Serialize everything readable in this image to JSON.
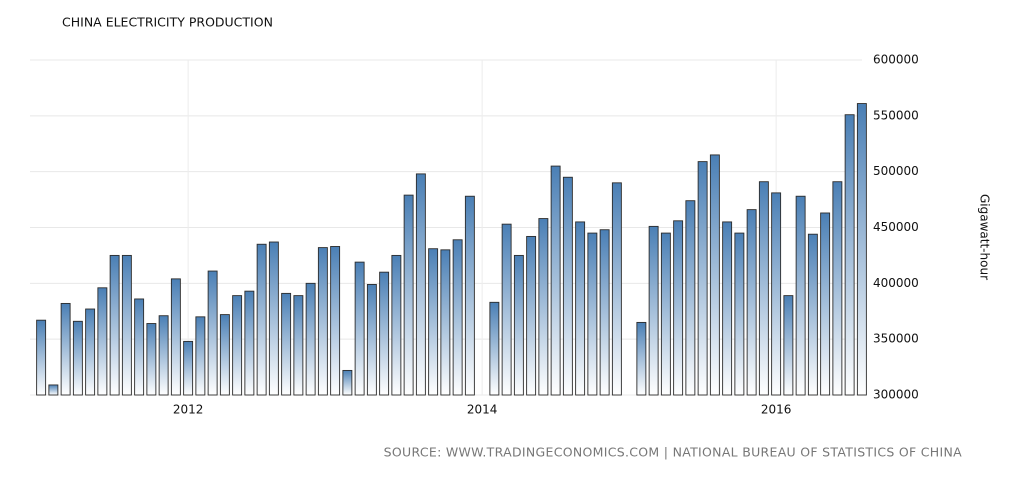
{
  "chart_data": {
    "type": "bar",
    "title": "CHINA ELECTRICITY PRODUCTION",
    "y_label": "Gigawatt-hour",
    "source": "SOURCE: WWW.TRADINGECONOMICS.COM | NATIONAL BUREAU OF STATISTICS OF CHINA",
    "color": "#4a7fb5",
    "grid": true,
    "categories": [
      null,
      null,
      null,
      null,
      null,
      null,
      null,
      null,
      null,
      null,
      null,
      null,
      "2012",
      null,
      null,
      null,
      null,
      null,
      null,
      null,
      null,
      null,
      null,
      null,
      null,
      null,
      null,
      null,
      null,
      null,
      null,
      null,
      null,
      null,
      null,
      null,
      "2014",
      null,
      null,
      null,
      null,
      null,
      null,
      null,
      null,
      null,
      null,
      null,
      null,
      null,
      null,
      null,
      null,
      null,
      null,
      null,
      null,
      null,
      null,
      null,
      "2016",
      null,
      null,
      null,
      null,
      null,
      null,
      null
    ],
    "values": [
      367000,
      309000,
      382000,
      366000,
      377000,
      396000,
      425000,
      425000,
      386000,
      364000,
      371000,
      404000,
      348000,
      370000,
      411000,
      372000,
      389000,
      393000,
      435000,
      437000,
      391000,
      389000,
      400000,
      432000,
      433000,
      322000,
      419000,
      399000,
      410000,
      425000,
      479000,
      498000,
      431000,
      430000,
      439000,
      478000,
      null,
      383000,
      453000,
      425000,
      442000,
      458000,
      505000,
      495000,
      455000,
      445000,
      448000,
      490000,
      null,
      365000,
      451000,
      445000,
      456000,
      474000,
      509000,
      515000,
      455000,
      445000,
      466000,
      491000,
      481000,
      389000,
      478000,
      444000,
      463000,
      491000,
      551000,
      561000
    ],
    "ylim": [
      300000,
      600000
    ],
    "yticks": [
      300000,
      350000,
      400000,
      450000,
      500000,
      550000,
      600000
    ]
  }
}
